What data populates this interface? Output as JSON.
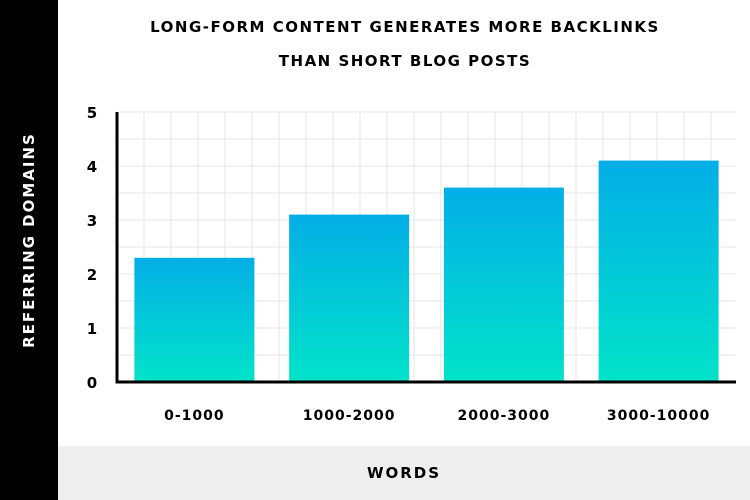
{
  "chart_data": {
    "type": "bar",
    "title_lines": [
      "LONG-FORM CONTENT GENERATES MORE BACKLINKS",
      "THAN SHORT BLOG POSTS"
    ],
    "xlabel": "WORDS",
    "ylabel": "REFERRING DOMAINS",
    "categories": [
      "0-1000",
      "1000-2000",
      "2000-3000",
      "3000-10000"
    ],
    "values": [
      2.3,
      3.1,
      3.6,
      4.1
    ],
    "ylim": [
      0,
      5
    ],
    "yticks": [
      0,
      1,
      2,
      3,
      4,
      5
    ],
    "grid": true,
    "colors": {
      "bar_top": "#03aee6",
      "bar_bottom": "#02e3c9",
      "grid": "#e6e6e6",
      "axis": "#000000",
      "ylabel_band": "#000000",
      "xlabel_band": "#eeeeee"
    }
  }
}
